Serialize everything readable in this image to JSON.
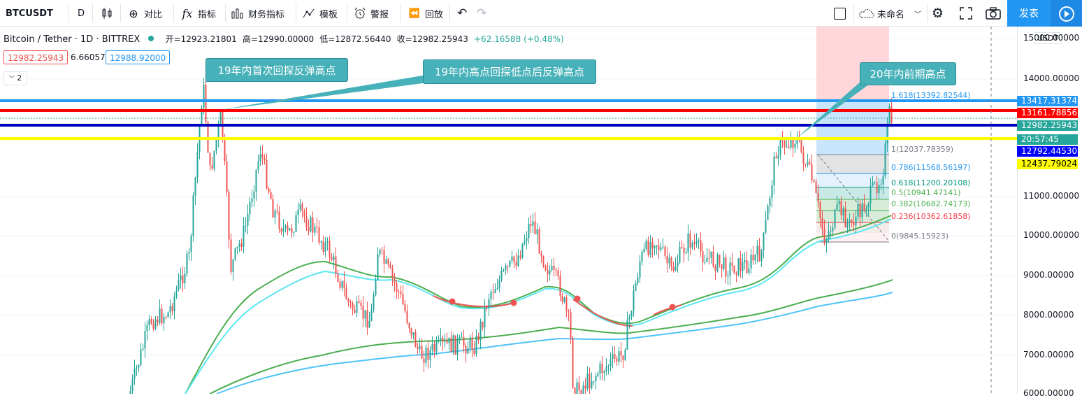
{
  "toolbar": {
    "symbol": "BTCUSDT",
    "interval": "D",
    "compare": "对比",
    "indicators": "指标",
    "financials": "财务指标",
    "templates": "模板",
    "alert": "警报",
    "replay": "回放",
    "layout_name": "未命名",
    "publish": "发表"
  },
  "legend": {
    "title": "Bitcoin / Tether · 1D · BITTREX",
    "open": "开=12923.21801",
    "high": "高=12990.00000",
    "low": "低=12872.56440",
    "close": "收=12982.25943",
    "change": "+62.16588 (+0.48%)"
  },
  "prices": {
    "bid": "12982.25943",
    "spread": "6.66057",
    "ask": "12988.92000",
    "collapse": "2"
  },
  "callouts": [
    {
      "text": "19年内首次回探反弹高点"
    },
    {
      "text": "19年内高点回探低点后反弹高点"
    },
    {
      "text": "20年内前期高点"
    }
  ],
  "axis": {
    "currency": "USDT",
    "ticks": [
      "15000.00000",
      "14000.00000",
      "11000.00000",
      "10000.00000",
      "9000.00000",
      "8000.00000",
      "7000.00000",
      "6000.00000"
    ],
    "labels": [
      {
        "text": "13417.31374",
        "bg": "#2196f3",
        "fg": "#ffffff"
      },
      {
        "text": "13161.78856",
        "bg": "#ff0000",
        "fg": "#ffffff"
      },
      {
        "text": "12982.25943",
        "bg": "#26a69a",
        "fg": "#ffffff"
      },
      {
        "text": "20:57:45",
        "bg": "#26a69a",
        "fg": "#ffffff"
      },
      {
        "text": "12792.44530",
        "bg": "#0000ff",
        "fg": "#ffffff"
      },
      {
        "text": "12437.79024",
        "bg": "#ffff00",
        "fg": "#000000"
      }
    ]
  },
  "fib": [
    {
      "text": "1.618(13392.82544)",
      "color": "#2196f3"
    },
    {
      "text": "1(12037.78359)",
      "color": "#787b86"
    },
    {
      "text": "0.786(11568.56197)",
      "color": "#2196f3"
    },
    {
      "text": "0.618(11200.20108)",
      "color": "#089981"
    },
    {
      "text": "0.5(10941.47141)",
      "color": "#4caf50"
    },
    {
      "text": "0.382(10682.74173)",
      "color": "#4caf50"
    },
    {
      "text": "0.236(10362.61858)",
      "color": "#f23645"
    },
    {
      "text": "0(9845.15923)",
      "color": "#787b86"
    }
  ],
  "colors": {
    "up": "#26a69a",
    "down": "#ef5350",
    "accent": "#2196f3"
  }
}
